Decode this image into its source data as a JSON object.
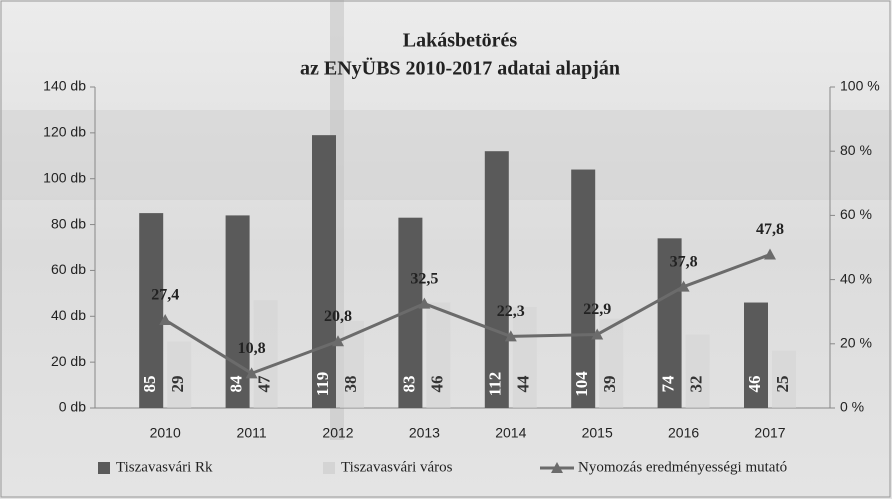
{
  "chart_data": {
    "type": "bar",
    "title": "Lakásbetörés",
    "subtitle": "az ENyÜBS 2010-2017 adatai alapján",
    "categories": [
      "2010",
      "2011",
      "2012",
      "2013",
      "2014",
      "2015",
      "2016",
      "2017"
    ],
    "series": [
      {
        "name": "Tiszavasvári Rk",
        "type": "bar",
        "color": "#5a5a5a",
        "values": [
          85,
          84,
          119,
          83,
          112,
          104,
          74,
          46
        ]
      },
      {
        "name": "Tiszavasvári város",
        "type": "bar",
        "color": "#d4d4d4",
        "values": [
          29,
          47,
          38,
          46,
          44,
          39,
          32,
          25
        ]
      },
      {
        "name": "Nyomozás eredményességi mutató",
        "type": "line",
        "axis": "y2",
        "color": "#6b6b6b",
        "values": [
          27.4,
          10.8,
          20.8,
          32.5,
          22.3,
          22.9,
          37.8,
          47.8
        ],
        "value_labels": [
          "27,4",
          "10,8",
          "20,8",
          "32,5",
          "22,3",
          "22,9",
          "37,8",
          "47,8"
        ]
      }
    ],
    "ylim": [
      0,
      140
    ],
    "yticks": [
      {
        "value": 0,
        "label": "0 db"
      },
      {
        "value": 20,
        "label": "20 db"
      },
      {
        "value": 40,
        "label": "40 db"
      },
      {
        "value": 60,
        "label": "60 db"
      },
      {
        "value": 80,
        "label": "80 db"
      },
      {
        "value": 100,
        "label": "100 db"
      },
      {
        "value": 120,
        "label": "120 db"
      },
      {
        "value": 140,
        "label": "140 db"
      }
    ],
    "y2lim": [
      0,
      100
    ],
    "y2ticks": [
      {
        "value": 0,
        "label": "0 %"
      },
      {
        "value": 20,
        "label": "20 %"
      },
      {
        "value": 40,
        "label": "40 %"
      },
      {
        "value": 60,
        "label": "60 %"
      },
      {
        "value": 80,
        "label": "80 %"
      },
      {
        "value": 100,
        "label": "100 %"
      }
    ],
    "legend": "bottom"
  }
}
